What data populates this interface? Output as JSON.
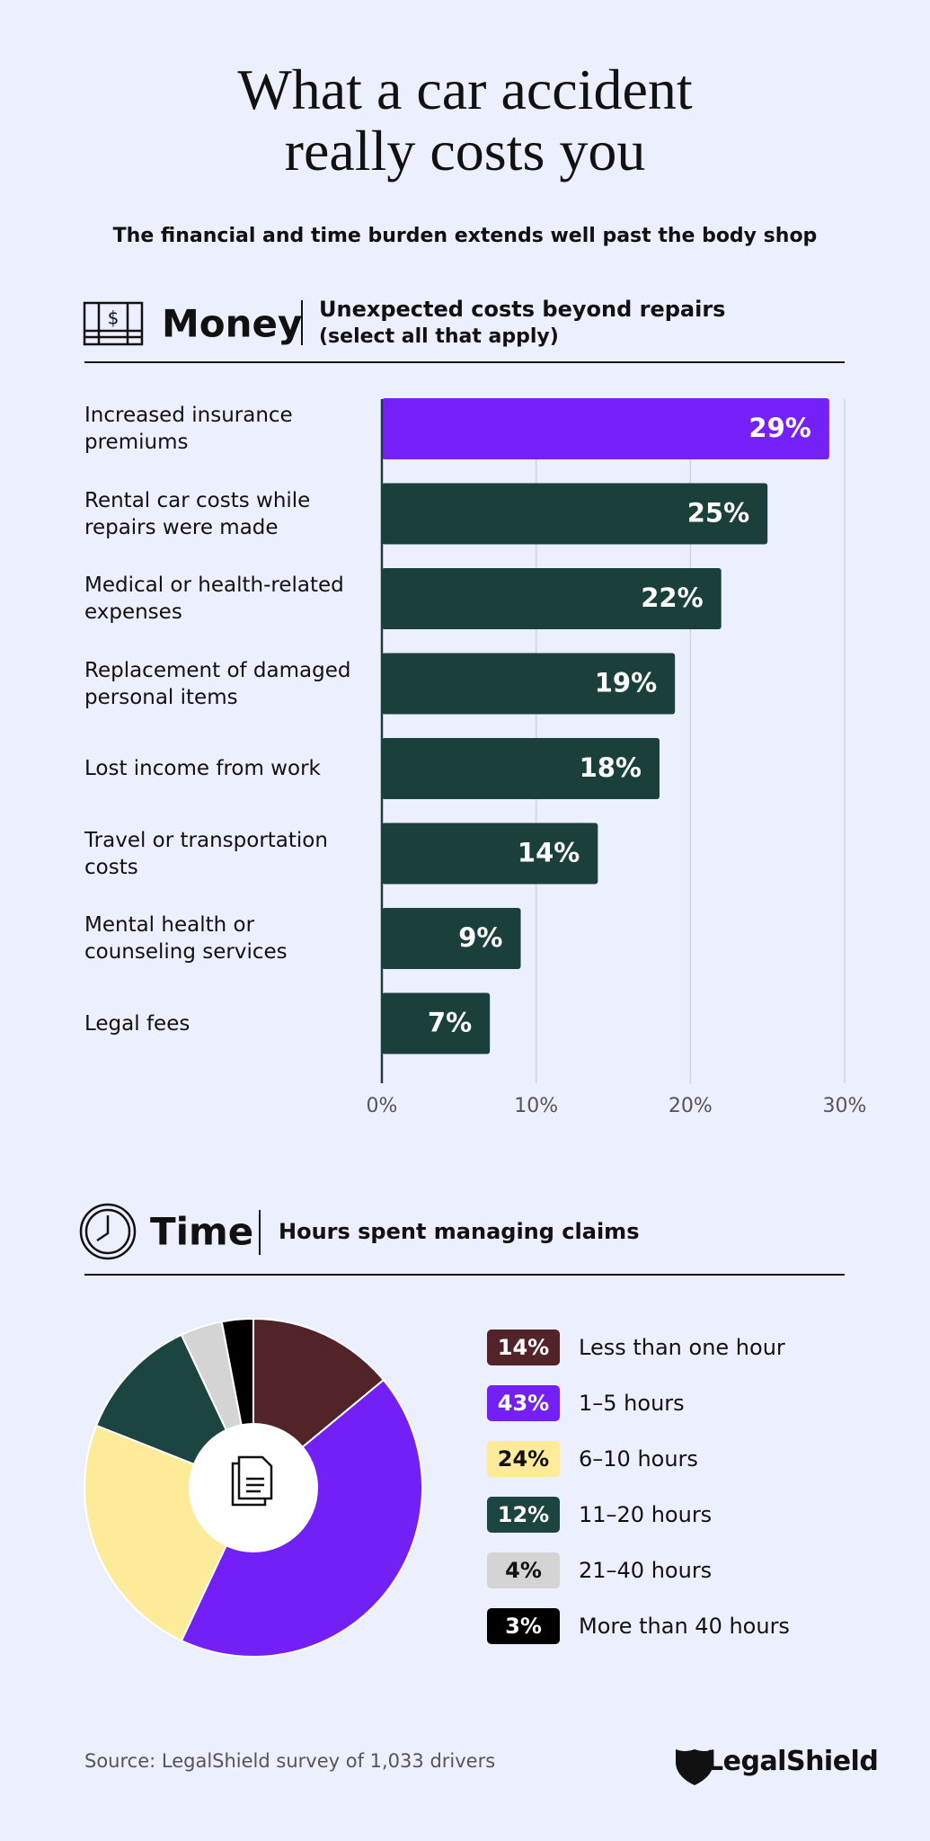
{
  "title": "What a car accident really costs you",
  "subtitle": "The financial and time burden extends well past the body shop",
  "chart_data": [
    {
      "type": "bar",
      "section": "Money",
      "title": "Unexpected costs beyond repairs",
      "subtitle": "(select all that apply)",
      "categories": [
        "Increased insurance premiums",
        "Rental car costs while repairs were made",
        "Medical or health-related expenses",
        "Replacement of damaged personal items",
        "Lost income from work",
        "Travel or transportation costs",
        "Mental health or counseling services",
        "Legal fees"
      ],
      "values": [
        29,
        25,
        22,
        19,
        18,
        14,
        9,
        7
      ],
      "value_labels": [
        "29%",
        "25%",
        "22%",
        "19%",
        "18%",
        "14%",
        "9%",
        "7%"
      ],
      "colors": [
        "#7420f6",
        "#1b403c",
        "#1b403c",
        "#1b403c",
        "#1b403c",
        "#1b403c",
        "#1b403c",
        "#1b403c"
      ],
      "xlim": [
        0,
        30
      ],
      "xticks": [
        {
          "value": 0,
          "label": "0%"
        },
        {
          "value": 10,
          "label": "10%"
        },
        {
          "value": 20,
          "label": "20%"
        },
        {
          "value": 30,
          "label": "30%"
        }
      ],
      "grid": true
    },
    {
      "type": "pie",
      "section": "Time",
      "title": "Hours spent managing claims",
      "categories": [
        "Less than one hour",
        "1–5 hours",
        "6–10 hours",
        "11–20 hours",
        "21–40 hours",
        "More than 40 hours"
      ],
      "values": [
        14,
        43,
        24,
        12,
        4,
        3
      ],
      "value_labels": [
        "14%",
        "43%",
        "24%",
        "12%",
        "4%",
        "3%"
      ],
      "colors": [
        "#52242a",
        "#7220f5",
        "#fdeb9a",
        "#1c4440",
        "#d4d4d4",
        "#000000"
      ]
    }
  ],
  "source": "Source: LegalShield survey of 1,033 drivers",
  "brand": "LegalShield"
}
